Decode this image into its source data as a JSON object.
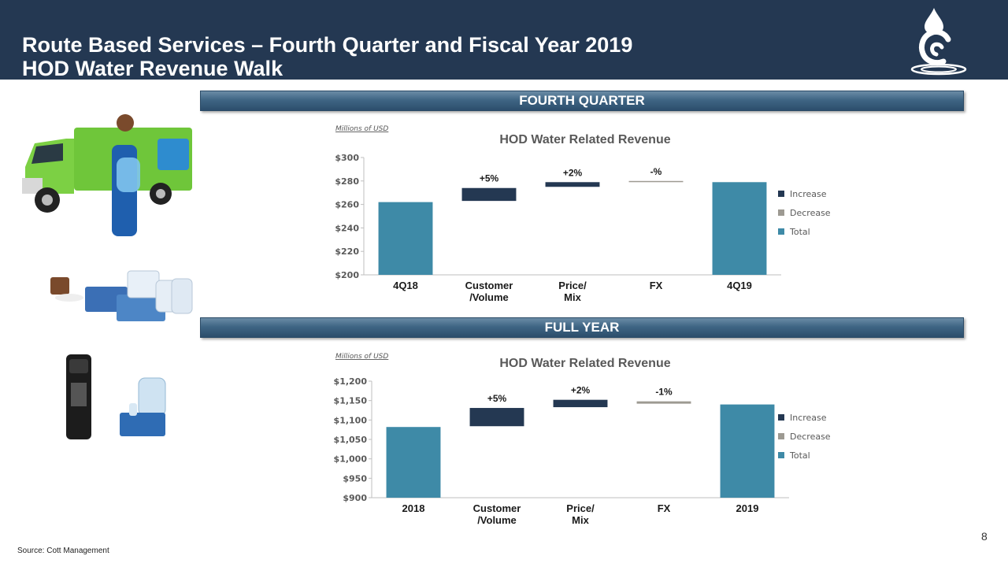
{
  "title_line1": "Route Based Services – Fourth Quarter and Fiscal Year 2019",
  "title_line2": "HOD Water Revenue Walk",
  "sections": {
    "quarter": "FOURTH QUARTER",
    "full_year": "FULL YEAR"
  },
  "footer": {
    "source": "Source:  Cott Management",
    "page_number": "8"
  },
  "colors": {
    "header_bg": "#243852",
    "increase": "#243852",
    "decrease": "#9d9a92",
    "total": "#3e8aa7"
  },
  "images": {
    "truck": "delivery-truck-photo",
    "coffee_products": "coffee-and-water-products-photo",
    "dispenser": "water-dispenser-photo",
    "bottles": "water-bottles-photo",
    "logo": "water-drop-c-logo"
  },
  "chart_data": [
    {
      "type": "bar",
      "subtype": "waterfall",
      "title": "HOD Water Related Revenue",
      "units_note": "Millions of USD",
      "categories": [
        "4Q18",
        "Customer\n/Volume",
        "Price/\nMix",
        "FX",
        "4Q19"
      ],
      "series": [
        {
          "name": "Increase",
          "ranges": [
            null,
            [
              263,
              274
            ],
            [
              275,
              279
            ],
            null,
            null
          ]
        },
        {
          "name": "Decrease",
          "ranges": [
            null,
            null,
            null,
            [
              279,
              280
            ],
            null
          ]
        },
        {
          "name": "Total",
          "ranges": [
            [
              200,
              262
            ],
            null,
            null,
            null,
            [
              200,
              279
            ]
          ]
        }
      ],
      "data_labels": [
        "",
        "+5%",
        "+2%",
        "-%",
        ""
      ],
      "ylim": [
        200,
        300
      ],
      "yticks": [
        200,
        220,
        240,
        260,
        280,
        300
      ],
      "ytick_labels": [
        "$200",
        "$220",
        "$240",
        "$260",
        "$280",
        "$300"
      ],
      "legend": [
        "Increase",
        "Decrease",
        "Total"
      ],
      "legend_position": "right",
      "grid": false
    },
    {
      "type": "bar",
      "subtype": "waterfall",
      "title": "HOD Water Related Revenue",
      "units_note": "Millions of USD",
      "categories": [
        "2018",
        "Customer\n/Volume",
        "Price/\nMix",
        "FX",
        "2019"
      ],
      "series": [
        {
          "name": "Increase",
          "ranges": [
            null,
            [
              1084,
              1131
            ],
            [
              1133,
              1152
            ],
            null,
            null
          ]
        },
        {
          "name": "Decrease",
          "ranges": [
            null,
            null,
            null,
            [
              1142,
              1148
            ],
            null
          ]
        },
        {
          "name": "Total",
          "ranges": [
            [
              900,
              1082
            ],
            null,
            null,
            null,
            [
              900,
              1140
            ]
          ]
        }
      ],
      "data_labels": [
        "",
        "+5%",
        "+2%",
        "-1%",
        ""
      ],
      "ylim": [
        900,
        1200
      ],
      "yticks": [
        900,
        950,
        1000,
        1050,
        1100,
        1150,
        1200
      ],
      "ytick_labels": [
        "$900",
        "$950",
        "$1,000",
        "$1,050",
        "$1,100",
        "$1,150",
        "$1,200"
      ],
      "legend": [
        "Increase",
        "Decrease",
        "Total"
      ],
      "legend_position": "right",
      "grid": false
    }
  ]
}
